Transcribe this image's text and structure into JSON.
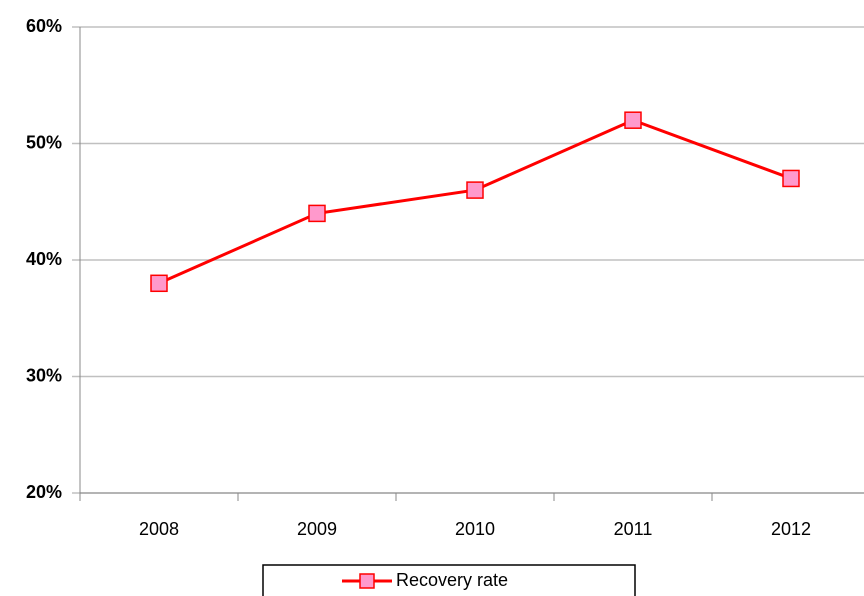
{
  "chart_data": {
    "type": "line",
    "categories": [
      "2008",
      "2009",
      "2010",
      "2011",
      "2012"
    ],
    "series": [
      {
        "name": "Recovery rate",
        "color": "#ff0000",
        "marker_color": "#ff99cc",
        "values": [
          38,
          44,
          46,
          52,
          47
        ]
      }
    ],
    "ylim": [
      20,
      60
    ],
    "yticks": [
      {
        "value": 20,
        "label": "20%"
      },
      {
        "value": 30,
        "label": "30%"
      },
      {
        "value": 40,
        "label": "40%"
      },
      {
        "value": 50,
        "label": "50%"
      },
      {
        "value": 60,
        "label": "60%"
      }
    ],
    "grid": true,
    "legend": "bottom"
  }
}
